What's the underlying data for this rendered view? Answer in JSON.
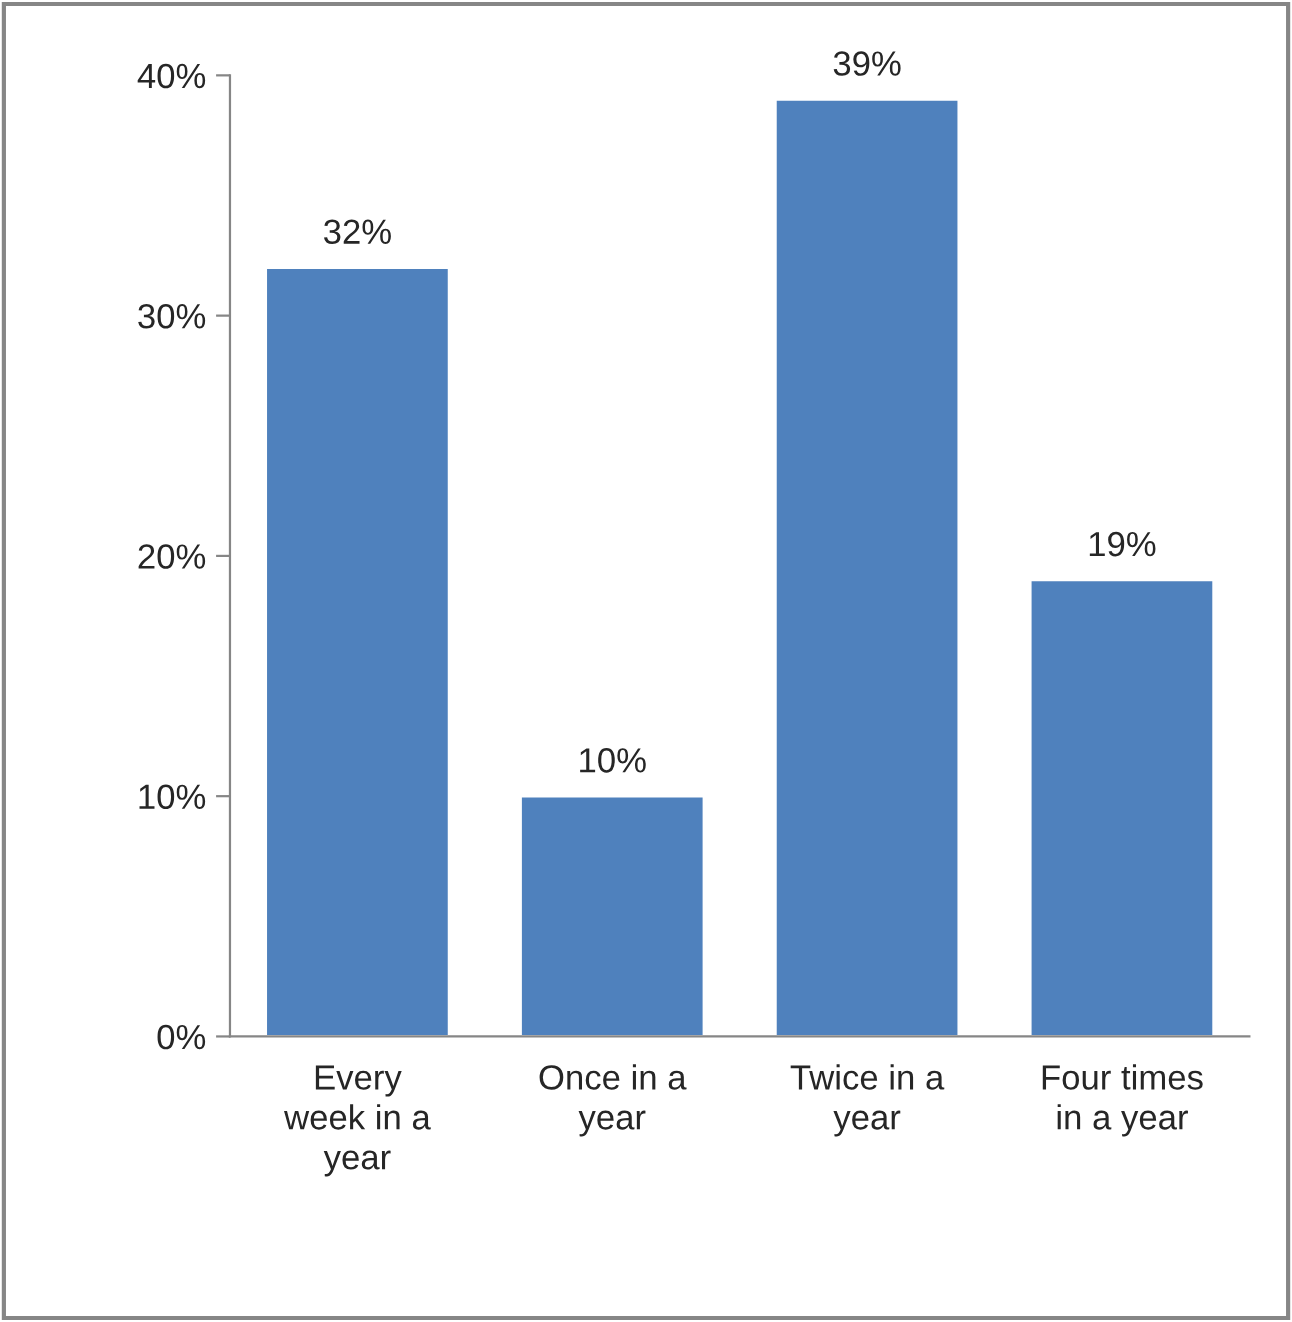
{
  "chart_data": {
    "type": "bar",
    "categories": [
      "Every\nweek in a\nyear",
      "Once in a\nyear",
      "Twice in a\nyear",
      "Four times\nin a year"
    ],
    "values": [
      32,
      10,
      39,
      19
    ],
    "value_labels": [
      "32%",
      "10%",
      "39%",
      "19%"
    ],
    "color": "#4f81bd",
    "ylim": [
      0,
      40
    ],
    "yticks": [
      {
        "value": 0,
        "label": "0%"
      },
      {
        "value": 10,
        "label": "10%"
      },
      {
        "value": 20,
        "label": "20%"
      },
      {
        "value": 30,
        "label": "30%"
      },
      {
        "value": 40,
        "label": "40%"
      }
    ],
    "grid": false,
    "legend": false
  }
}
